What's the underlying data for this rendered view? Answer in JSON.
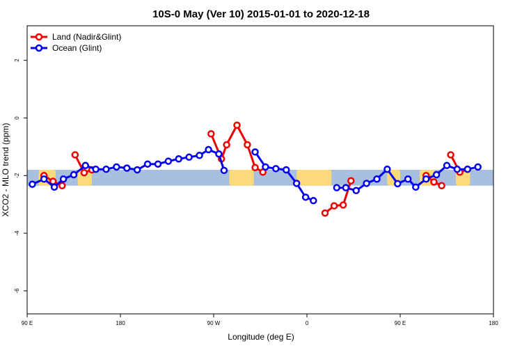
{
  "chart_data": {
    "type": "line",
    "title": "10S-0 May (Ver 10)   2015-01-01 to 2020-12-18",
    "xlabel": "Longitude (deg E)",
    "ylabel": "XCO2 - MLO trend (ppm)",
    "xlim": [
      90,
      450
    ],
    "ylim": [
      -6.8,
      3.2
    ],
    "x_ticks": [
      {
        "value": 90,
        "label": "90 E"
      },
      {
        "value": 162,
        "label": "180"
      },
      {
        "value": 234,
        "label": "90 W"
      },
      {
        "value": 306,
        "label": "0"
      },
      {
        "value": 378,
        "label": "90 E"
      },
      {
        "value": 450,
        "label": "180"
      }
    ],
    "y_ticks": [
      {
        "value": 2,
        "label": "2"
      },
      {
        "value": 0,
        "label": "0"
      },
      {
        "value": -2,
        "label": "-2"
      },
      {
        "value": -4,
        "label": "-4"
      },
      {
        "value": -6,
        "label": "-6"
      }
    ],
    "band": {
      "ymin": -2.35,
      "ymax": -1.8,
      "ocean_color": "#a9bfdf",
      "land_color": "#fcd97a"
    },
    "land_regions": [
      [
        99,
        112
      ],
      [
        129,
        140
      ],
      [
        246,
        265
      ],
      [
        298,
        325
      ],
      [
        368,
        378
      ],
      [
        393,
        405
      ],
      [
        421,
        432
      ]
    ],
    "series": [
      {
        "name": "Land (Nadir&Glint)",
        "color": "#ee0000",
        "segments": [
          [
            [
              103,
              -2.0
            ],
            [
              110,
              -2.2
            ],
            [
              117,
              -2.35
            ]
          ],
          [
            [
              127,
              -1.28
            ],
            [
              134,
              -1.9
            ],
            [
              140,
              -1.8
            ]
          ],
          [
            [
              232,
              -0.55
            ],
            [
              240,
              -1.42
            ],
            [
              244,
              -0.93
            ],
            [
              252,
              -0.25
            ],
            [
              260,
              -0.93
            ],
            [
              266,
              -1.72
            ],
            [
              272,
              -1.88
            ]
          ],
          [
            [
              320,
              -3.3
            ],
            [
              327,
              -3.05
            ],
            [
              334,
              -3.02
            ],
            [
              340,
              -2.18
            ]
          ],
          [
            [
              398,
              -2.0
            ],
            [
              404,
              -2.22
            ],
            [
              410,
              -2.35
            ]
          ],
          [
            [
              417,
              -1.28
            ],
            [
              424,
              -1.88
            ],
            [
              430,
              -1.78
            ]
          ]
        ]
      },
      {
        "name": "Ocean (Glint)",
        "color": "#0000ee",
        "segments": [
          [
            [
              94,
              -2.3
            ],
            [
              103,
              -2.12
            ],
            [
              111,
              -2.4
            ],
            [
              118,
              -2.12
            ],
            [
              126,
              -1.97
            ],
            [
              135,
              -1.65
            ],
            [
              143,
              -1.78
            ],
            [
              151,
              -1.78
            ],
            [
              159,
              -1.7
            ],
            [
              167,
              -1.74
            ],
            [
              175,
              -1.8
            ],
            [
              183,
              -1.6
            ],
            [
              191,
              -1.6
            ],
            [
              199,
              -1.5
            ],
            [
              207,
              -1.42
            ],
            [
              215,
              -1.36
            ],
            [
              223,
              -1.3
            ],
            [
              230,
              -1.1
            ],
            [
              238,
              -1.25
            ],
            [
              242,
              -1.82
            ]
          ],
          [
            [
              266,
              -1.18
            ],
            [
              274,
              -1.7
            ],
            [
              282,
              -1.76
            ],
            [
              290,
              -1.8
            ],
            [
              298,
              -2.27
            ],
            [
              305,
              -2.75
            ],
            [
              311,
              -2.87
            ]
          ],
          [
            [
              329,
              -2.42
            ],
            [
              336,
              -2.42
            ],
            [
              344,
              -2.52
            ],
            [
              352,
              -2.27
            ],
            [
              360,
              -2.12
            ],
            [
              368,
              -1.78
            ],
            [
              376,
              -2.28
            ],
            [
              384,
              -2.12
            ],
            [
              390,
              -2.4
            ],
            [
              398,
              -2.12
            ],
            [
              406,
              -1.97
            ],
            [
              414,
              -1.65
            ],
            [
              422,
              -1.78
            ],
            [
              430,
              -1.78
            ],
            [
              438,
              -1.7
            ]
          ]
        ]
      }
    ],
    "legend_position": "top-left"
  }
}
